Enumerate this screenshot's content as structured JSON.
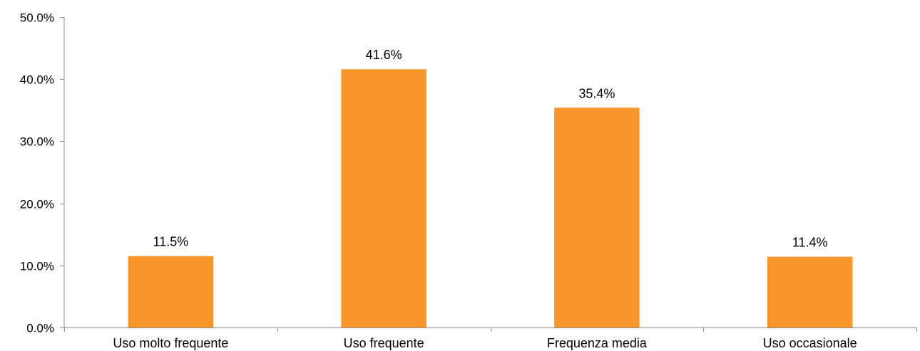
{
  "chart_data": {
    "type": "bar",
    "categories": [
      "Uso molto frequente",
      "Uso frequente",
      "Frequenza media",
      "Uso occasionale"
    ],
    "values": [
      11.5,
      41.6,
      35.4,
      11.4
    ],
    "data_labels": [
      "11.5%",
      "41.6%",
      "35.4%",
      "11.4%"
    ],
    "ylim": [
      0,
      50
    ],
    "yticks": [
      0,
      10,
      20,
      30,
      40,
      50
    ],
    "ytick_labels": [
      "0.0%",
      "10.0%",
      "20.0%",
      "30.0%",
      "40.0%",
      "50.0%"
    ],
    "grid": false,
    "legend": "none",
    "bar_color": "#F7962B",
    "axis_color": "#8C8C8C"
  }
}
